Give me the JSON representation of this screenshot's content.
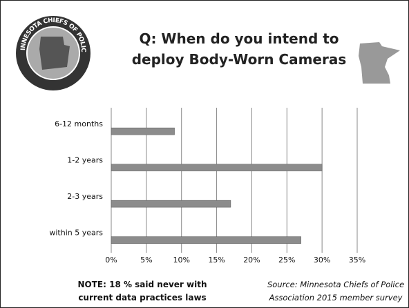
{
  "header": {
    "title": "Q: When do you intend to deploy Body-Worn Cameras",
    "logo_text": "MINNESOTA CHIEFS OF POLICE"
  },
  "chart_data": {
    "type": "hbar",
    "categories": [
      "6-12 months",
      "1-2 years",
      "2-3 years",
      "within 5 years"
    ],
    "values": [
      9,
      30,
      17,
      27
    ],
    "color": "#8c8c8c",
    "xlim": [
      0,
      35
    ],
    "xticks": [
      {
        "value": 0,
        "label": "0%"
      },
      {
        "value": 5,
        "label": "5%"
      },
      {
        "value": 10,
        "label": "10%"
      },
      {
        "value": 15,
        "label": "15%"
      },
      {
        "value": 20,
        "label": "20%"
      },
      {
        "value": 25,
        "label": "25%"
      },
      {
        "value": 30,
        "label": "30%"
      },
      {
        "value": 35,
        "label": "35%"
      }
    ],
    "grid": true
  },
  "footer": {
    "note": "NOTE: 18 % said never with current data practices laws",
    "source": "Source: Minnesota Chiefs of Police Association 2015 member survey"
  }
}
